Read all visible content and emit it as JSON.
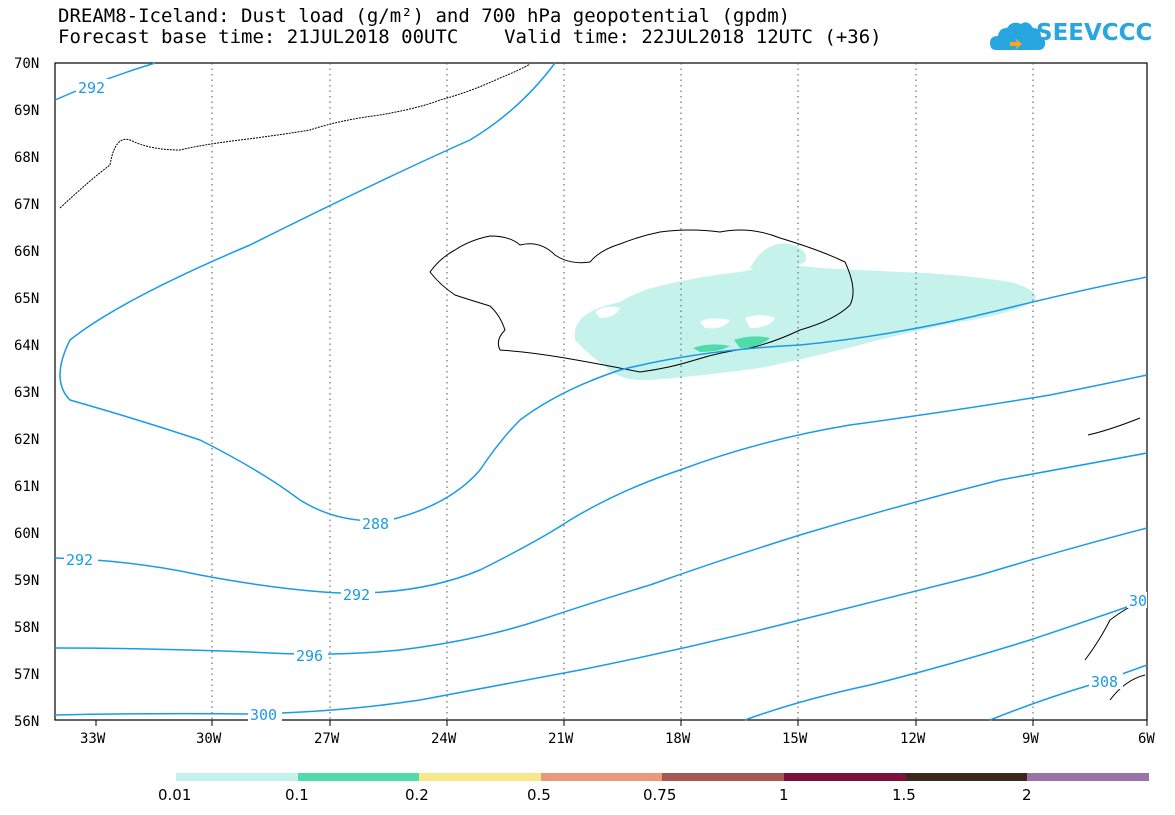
{
  "title": {
    "line1": "DREAM8-Iceland: Dust load (g/m²) and 700 hPa geopotential (gpdm)",
    "line2": "Forecast base time: 21JUL2018 00UTC    Valid time: 22JUL2018 12UTC (+36)"
  },
  "logo": {
    "text": "SEEVCCC",
    "icon": "cloud-icon",
    "color": "#27a6e0"
  },
  "map": {
    "lat_labels": [
      "70N",
      "69N",
      "68N",
      "67N",
      "66N",
      "65N",
      "64N",
      "63N",
      "62N",
      "61N",
      "60N",
      "59N",
      "58N",
      "57N",
      "56N"
    ],
    "lon_labels": [
      "33W",
      "30W",
      "27W",
      "24W",
      "21W",
      "18W",
      "15W",
      "12W",
      "9W",
      "6W"
    ],
    "lat_range": [
      56,
      70
    ],
    "lon_range": [
      -34.5,
      -6
    ],
    "contour_color": "#1a9be8",
    "contour_labels": [
      {
        "text": "292"
      },
      {
        "text": "288"
      },
      {
        "text": "292"
      },
      {
        "text": "292"
      },
      {
        "text": "296"
      },
      {
        "text": "300"
      },
      {
        "text": "308"
      },
      {
        "text": "30"
      }
    ]
  },
  "colorbar": {
    "colors": [
      "#c6f2ec",
      "#4fdcaa",
      "#f6e98a",
      "#ea9a7a",
      "#a65a54",
      "#7c1238",
      "#3c2818",
      "#9a72a8"
    ],
    "labels": [
      "0.01",
      "0.1",
      "0.2",
      "0.5",
      "0.75",
      "1",
      "1.5",
      "2"
    ]
  }
}
